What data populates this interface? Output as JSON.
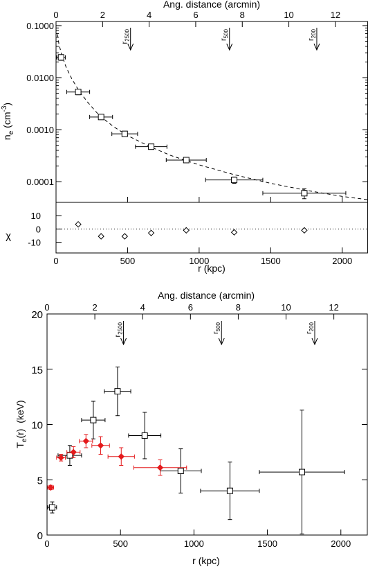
{
  "chart_data": [
    {
      "type": "scatter",
      "panel": "density",
      "title": "",
      "top_xlabel": "Ang. distance (arcmin)",
      "top_ticks": [
        "0",
        "2",
        "4",
        "6",
        "8",
        "10",
        "12"
      ],
      "top_tick_values": [
        0,
        2,
        4,
        6,
        8,
        10,
        12
      ],
      "top_xlim": [
        0,
        13.4
      ],
      "ylabel": "n_e (cm^-3)",
      "ylabel_display": {
        "main": "n",
        "sub": "e",
        "open": " (cm",
        "sup": "-3",
        "close": ")"
      },
      "yscale": "log",
      "ylim": [
        4e-05,
        0.12
      ],
      "yticks": [
        "0.1000",
        "0.0100",
        "0.0010",
        "0.0001"
      ],
      "ytick_values": [
        0.1,
        0.01,
        0.001,
        0.0001
      ],
      "xlim": [
        0,
        2180
      ],
      "series": [
        {
          "color": "#000000",
          "marker": "square",
          "points": [
            {
              "x": 35,
              "xerr": 30,
              "y": 0.0245,
              "yerr": 0.003
            },
            {
              "x": 155,
              "xerr": 80,
              "y": 0.0053,
              "yerr": 0.0006
            },
            {
              "x": 315,
              "xerr": 80,
              "y": 0.00175,
              "yerr": 0.00017
            },
            {
              "x": 480,
              "xerr": 90,
              "y": 0.00083,
              "yerr": 8e-05
            },
            {
              "x": 665,
              "xerr": 110,
              "y": 0.00047,
              "yerr": 4e-05
            },
            {
              "x": 910,
              "xerr": 140,
              "y": 0.00026,
              "yerr": 2e-05
            },
            {
              "x": 1245,
              "xerr": 200,
              "y": 0.000108,
              "yerr": 1.5e-05
            },
            {
              "x": 1735,
              "xerr": 290,
              "y": 6e-05,
              "yerr": 1.3e-05
            }
          ]
        }
      ],
      "model_curve": {
        "style": "dashed",
        "x": [
          10,
          20,
          40,
          70,
          110,
          160,
          220,
          300,
          400,
          500,
          650,
          800,
          1000,
          1250,
          1500,
          1750,
          2000,
          2180
        ],
        "y": [
          0.068,
          0.045,
          0.027,
          0.016,
          0.0095,
          0.0056,
          0.0034,
          0.0019,
          0.00115,
          0.00077,
          0.00048,
          0.00032,
          0.00021,
          0.000135,
          9.3e-05,
          6.8e-05,
          5.2e-05,
          4.5e-05
        ]
      },
      "annotations": [
        {
          "label": "r",
          "sub": "2500",
          "x_arcmin": 3.2
        },
        {
          "label": "r",
          "sub": "500",
          "x_arcmin": 7.45
        },
        {
          "label": "r",
          "sub": "200",
          "x_arcmin": 11.2
        }
      ],
      "residuals": {
        "ylabel": "χ",
        "ylim": [
          -18,
          20
        ],
        "yticks": [
          "10",
          "0",
          "-10"
        ],
        "ytick_values": [
          10,
          0,
          -10
        ],
        "x": [
          155,
          315,
          480,
          665,
          910,
          1245,
          1735
        ],
        "y": [
          3.5,
          -5.5,
          -5.5,
          -3.0,
          -1.0,
          -2.5,
          -1.0
        ]
      },
      "xlabel": "r (kpc)",
      "xticks": [
        "0",
        "500",
        "1000",
        "1500",
        "2000"
      ],
      "xtick_values": [
        0,
        500,
        1000,
        1500,
        2000
      ]
    },
    {
      "type": "scatter",
      "panel": "temperature",
      "title": "",
      "top_xlabel": "Ang. distance (arcmin)",
      "top_ticks": [
        "0",
        "2",
        "4",
        "6",
        "8",
        "10",
        "12"
      ],
      "top_tick_values": [
        0,
        2,
        4,
        6,
        8,
        10,
        12
      ],
      "top_xlim": [
        0,
        13.4
      ],
      "ylabel": "T_e(r) (keV)",
      "ylabel_display": {
        "main": "T",
        "sub": "e",
        "rest": "(r)  (keV)"
      },
      "ylim": [
        0,
        20
      ],
      "yticks": [
        "0",
        "5",
        "10",
        "15",
        "20"
      ],
      "ytick_values": [
        0,
        5,
        10,
        15,
        20
      ],
      "xlim": [
        0,
        2180
      ],
      "xlabel": "r  (kpc)",
      "xticks": [
        "0",
        "500",
        "1000",
        "1500",
        "2000"
      ],
      "xtick_values": [
        0,
        500,
        1000,
        1500,
        2000
      ],
      "series": [
        {
          "color": "#000000",
          "marker": "square",
          "points": [
            {
              "x": 35,
              "xerr": 30,
              "y": 2.5,
              "yerr": 0.5
            },
            {
              "x": 155,
              "xerr": 80,
              "y": 7.2,
              "yerr": 0.9
            },
            {
              "x": 315,
              "xerr": 80,
              "y": 10.4,
              "yerr": 1.7
            },
            {
              "x": 480,
              "xerr": 90,
              "y": 13.0,
              "yerr": 2.2
            },
            {
              "x": 665,
              "xerr": 110,
              "y": 9.0,
              "yerr": 2.1
            },
            {
              "x": 910,
              "xerr": 140,
              "y": 5.8,
              "yerr": 2.0
            },
            {
              "x": 1245,
              "xerr": 200,
              "y": 4.0,
              "yerr": 2.6
            },
            {
              "x": 1735,
              "xerr": 290,
              "y": 5.7,
              "yerr": 5.6
            }
          ]
        },
        {
          "color": "#e41a1c",
          "marker": "diamond",
          "points": [
            {
              "x": 25,
              "xerr": 20,
              "y": 4.3,
              "yerr": 0.2
            },
            {
              "x": 95,
              "xerr": 30,
              "y": 7.0,
              "yerr": 0.3
            },
            {
              "x": 180,
              "xerr": 45,
              "y": 7.5,
              "yerr": 0.5
            },
            {
              "x": 265,
              "xerr": 45,
              "y": 8.5,
              "yerr": 0.6
            },
            {
              "x": 365,
              "xerr": 60,
              "y": 8.1,
              "yerr": 0.8
            },
            {
              "x": 505,
              "xerr": 90,
              "y": 7.1,
              "yerr": 0.8
            },
            {
              "x": 770,
              "xerr": 180,
              "y": 6.1,
              "yerr": 0.7
            }
          ]
        }
      ],
      "annotations": [
        {
          "label": "r",
          "sub": "2500",
          "x_arcmin": 3.2
        },
        {
          "label": "r",
          "sub": "500",
          "x_arcmin": 7.3
        },
        {
          "label": "r",
          "sub": "200",
          "x_arcmin": 11.2
        }
      ]
    }
  ]
}
